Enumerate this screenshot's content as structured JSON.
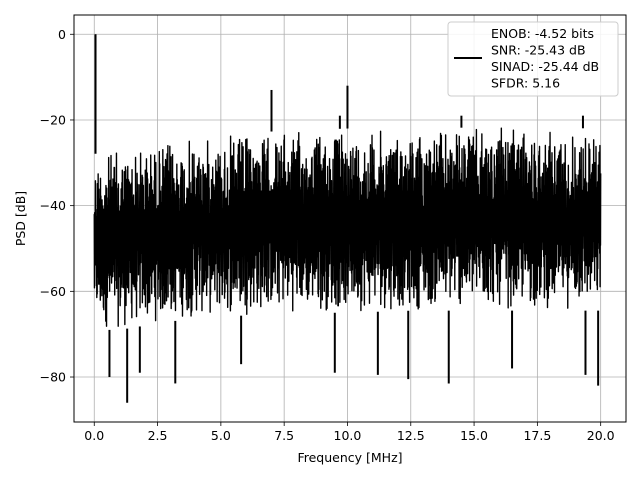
{
  "chart_data": {
    "type": "line",
    "xlabel": "Frequency [MHz]",
    "ylabel": "PSD [dB]",
    "xlim": [
      -0.8,
      21.0
    ],
    "ylim": [
      -90.5,
      4.5
    ],
    "xticks": [
      0.0,
      2.5,
      5.0,
      7.5,
      10.0,
      12.5,
      15.0,
      17.5,
      20.0
    ],
    "xtick_labels": [
      "0.0",
      "2.5",
      "5.0",
      "7.5",
      "10.0",
      "12.5",
      "15.0",
      "17.5",
      "20.0"
    ],
    "yticks": [
      0,
      -20,
      -40,
      -60,
      -80
    ],
    "ytick_labels": [
      "0",
      "−20",
      "−40",
      "−60",
      "−80"
    ],
    "grid": true,
    "legend_position": "top-right",
    "legend_lines": [
      "ENOB: -4.52 bits",
      "SNR: -25.43 dB",
      "SINAD: -25.44 dB",
      "SFDR: 5.16"
    ],
    "series": [
      {
        "color": "#000000",
        "noise_envelope": {
          "x": [
            0.0,
            0.5,
            1.0,
            2.0,
            3.0,
            5.0,
            7.5,
            10.0,
            12.5,
            15.0,
            17.5,
            20.0
          ],
          "upper_dB": [
            -28,
            -27,
            -26.5,
            -25.5,
            -24.5,
            -23.5,
            -22.5,
            -22,
            -21.8,
            -21.8,
            -21.8,
            -22
          ],
          "lower_dB": [
            -68,
            -69,
            -69,
            -68,
            -67,
            -66,
            -65,
            -65,
            -64.5,
            -64.5,
            -64.5,
            -64.5
          ]
        },
        "peaks": [
          {
            "x": 0.05,
            "y": 0
          },
          {
            "x": 7.0,
            "y": -13
          },
          {
            "x": 10.0,
            "y": -12
          },
          {
            "x": 9.7,
            "y": -19
          },
          {
            "x": 14.5,
            "y": -19
          },
          {
            "x": 19.3,
            "y": -19
          }
        ],
        "dips": [
          {
            "x": 0.6,
            "y": -80
          },
          {
            "x": 1.3,
            "y": -86
          },
          {
            "x": 1.8,
            "y": -79
          },
          {
            "x": 3.2,
            "y": -81.5
          },
          {
            "x": 5.8,
            "y": -77
          },
          {
            "x": 9.5,
            "y": -79
          },
          {
            "x": 11.2,
            "y": -79.5
          },
          {
            "x": 12.4,
            "y": -80.5
          },
          {
            "x": 14.0,
            "y": -81.5
          },
          {
            "x": 16.5,
            "y": -78
          },
          {
            "x": 19.4,
            "y": -79.5
          },
          {
            "x": 19.9,
            "y": -82
          }
        ]
      }
    ]
  }
}
